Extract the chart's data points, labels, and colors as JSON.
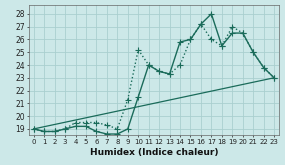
{
  "xlabel": "Humidex (Indice chaleur)",
  "bg_color": "#cce8e8",
  "line_color": "#1a6b5a",
  "grid_color": "#aacfcf",
  "xlim": [
    -0.5,
    23.5
  ],
  "ylim": [
    18.5,
    28.7
  ],
  "xticks": [
    0,
    1,
    2,
    3,
    4,
    5,
    6,
    7,
    8,
    9,
    10,
    11,
    12,
    13,
    14,
    15,
    16,
    17,
    18,
    19,
    20,
    21,
    22,
    23
  ],
  "yticks": [
    19,
    20,
    21,
    22,
    23,
    24,
    25,
    26,
    27,
    28
  ],
  "series": [
    {
      "x": [
        0,
        1,
        2,
        3,
        4,
        5,
        6,
        7,
        8,
        9,
        10,
        11,
        12,
        13,
        14,
        15,
        16,
        17,
        18,
        19,
        20,
        21,
        22,
        23
      ],
      "y": [
        19,
        18.8,
        18.8,
        19.0,
        19.2,
        19.2,
        18.8,
        18.6,
        18.6,
        19.0,
        21.5,
        24.0,
        23.5,
        23.3,
        25.8,
        26.0,
        27.2,
        28.0,
        25.5,
        26.5,
        26.5,
        25.0,
        23.8,
        23.0
      ],
      "style": "-",
      "marker": "+",
      "lw": 1.0,
      "ms": 4
    },
    {
      "x": [
        0,
        1,
        2,
        3,
        4,
        5,
        6,
        7,
        8,
        9,
        10,
        11,
        12,
        13,
        14,
        15,
        16,
        17,
        18,
        19,
        20,
        21,
        22,
        23
      ],
      "y": [
        19,
        18.8,
        18.8,
        19.0,
        19.5,
        19.5,
        19.5,
        19.3,
        19.0,
        21.3,
        25.2,
        24.0,
        23.5,
        23.3,
        24.0,
        26.0,
        27.2,
        26.0,
        25.5,
        27.0,
        26.5,
        25.0,
        23.8,
        23.0
      ],
      "style": ":",
      "marker": "+",
      "lw": 1.0,
      "ms": 4
    },
    {
      "x": [
        0,
        23
      ],
      "y": [
        19,
        23
      ],
      "style": "-",
      "marker": null,
      "lw": 0.9,
      "ms": 0
    }
  ]
}
